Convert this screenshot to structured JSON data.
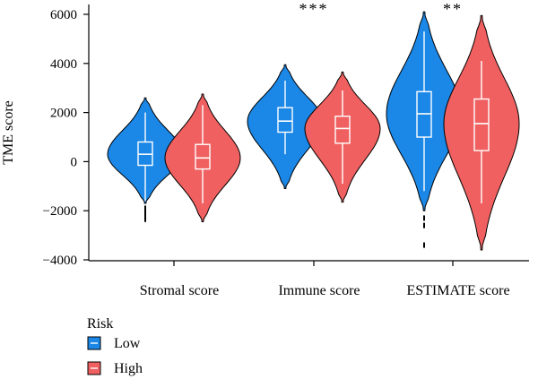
{
  "chart_data": {
    "type": "violin",
    "title": "",
    "xlabel": "",
    "ylabel": "TME score",
    "ylim": [
      -4000,
      6000
    ],
    "yticks": [
      -4000,
      -2000,
      0,
      2000,
      4000,
      6000
    ],
    "ytick_labels": [
      "−4000",
      "−2000",
      "0",
      "2000",
      "4000",
      "6000"
    ],
    "grid": false,
    "categories": [
      "Stromal score",
      "Immune score",
      "ESTIMATE score"
    ],
    "significance": [
      "",
      "***",
      "**"
    ],
    "legend": {
      "title": "Risk",
      "placement": "bottom-left",
      "entries": [
        "Low",
        "High"
      ]
    },
    "series": [
      {
        "name": "Low",
        "color": "#1b87e6",
        "stats": [
          {
            "min": -1600,
            "q1": -150,
            "median": 300,
            "q3": 800,
            "max": 2000,
            "vmin": -1700,
            "vmax": 2600,
            "outliers": [
              -1900,
              -2050,
              -2200,
              -2350
            ]
          },
          {
            "min": 300,
            "q1": 1200,
            "median": 1650,
            "q3": 2200,
            "max": 3300,
            "vmin": -1100,
            "vmax": 3950,
            "outliers": []
          },
          {
            "min": -1200,
            "q1": 1000,
            "median": 1950,
            "q3": 2850,
            "max": 5300,
            "vmin": -2000,
            "vmax": 6100,
            "outliers": [
              -2300,
              -2600,
              -3400
            ]
          }
        ]
      },
      {
        "name": "High",
        "color": "#f06060",
        "stats": [
          {
            "min": -1700,
            "q1": -300,
            "median": 150,
            "q3": 700,
            "max": 2300,
            "vmin": -2450,
            "vmax": 2750,
            "outliers": []
          },
          {
            "min": -900,
            "q1": 750,
            "median": 1350,
            "q3": 1850,
            "max": 2900,
            "vmin": -1650,
            "vmax": 3650,
            "outliers": []
          },
          {
            "min": -1700,
            "q1": 450,
            "median": 1550,
            "q3": 2550,
            "max": 4100,
            "vmin": -3600,
            "vmax": 5950,
            "outliers": []
          }
        ]
      }
    ]
  }
}
